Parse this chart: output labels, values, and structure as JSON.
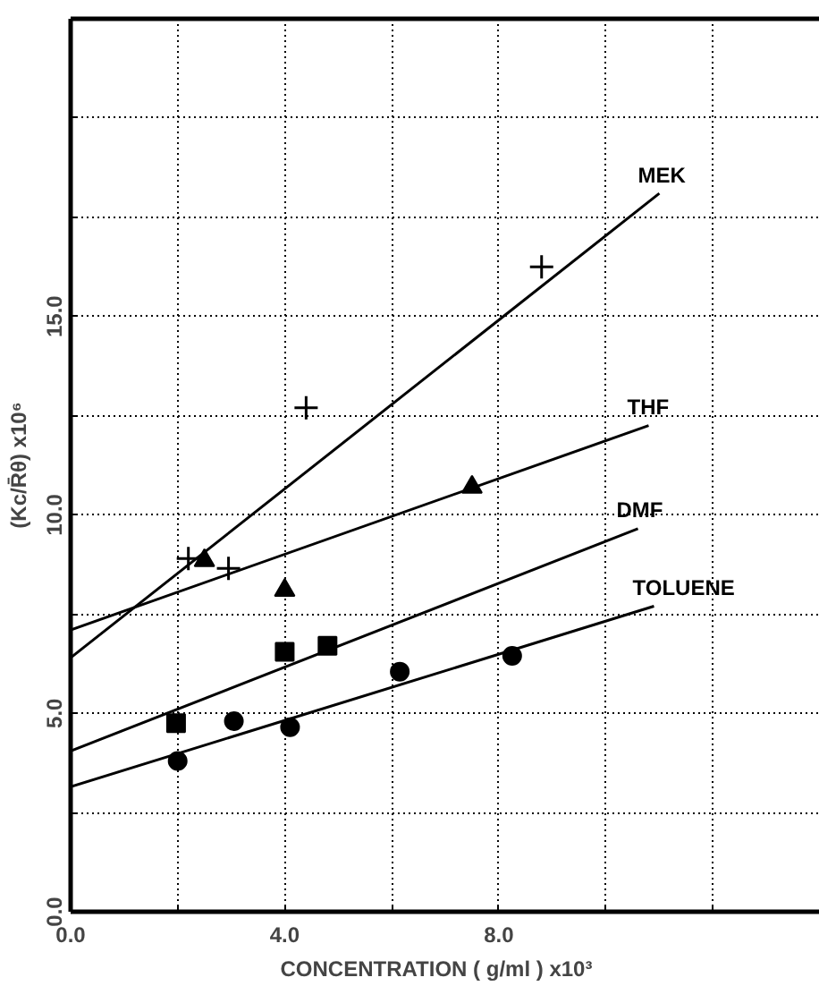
{
  "chart_data": {
    "type": "scatter",
    "xlabel": "CONCENTRATION   ( g/ml )  x10³",
    "ylabel": "(Kc/R̄θ) x10⁶",
    "xlim": [
      0,
      14
    ],
    "ylim": [
      0,
      22.5
    ],
    "xticks": [
      {
        "value": 0,
        "label": "0.0"
      },
      {
        "value": 2,
        "label": null
      },
      {
        "value": 4,
        "label": "4.0"
      },
      {
        "value": 6,
        "label": null
      },
      {
        "value": 8,
        "label": "8.0"
      },
      {
        "value": 10,
        "label": null
      },
      {
        "value": 12,
        "label": null
      }
    ],
    "yticks": [
      {
        "value": 0,
        "label": "0.0"
      },
      {
        "value": 2.5,
        "label": null
      },
      {
        "value": 5,
        "label": "5.0"
      },
      {
        "value": 7.5,
        "label": null
      },
      {
        "value": 10,
        "label": "10.0"
      },
      {
        "value": 12.5,
        "label": null
      },
      {
        "value": 15,
        "label": "15.0"
      },
      {
        "value": 17.5,
        "label": null
      },
      {
        "value": 20,
        "label": null
      }
    ],
    "grid": true,
    "series": [
      {
        "marker": "cross",
        "color": "#000000",
        "x": [
          2.2,
          2.95,
          4.4,
          8.8
        ],
        "values": [
          8.9,
          8.65,
          12.7,
          16.25
        ]
      },
      {
        "type": "line",
        "name": "MEK",
        "color": "#000000",
        "x": [
          0,
          11.0
        ],
        "values": [
          6.4,
          18.1
        ]
      },
      {
        "marker": "triangle",
        "color": "#000000",
        "x": [
          2.5,
          4.0,
          7.5
        ],
        "values": [
          8.85,
          8.1,
          10.7
        ]
      },
      {
        "type": "line",
        "name": "THF",
        "color": "#000000",
        "x": [
          0,
          10.8
        ],
        "values": [
          7.1,
          12.25
        ]
      },
      {
        "marker": "square",
        "color": "#000000",
        "x": [
          1.97,
          4.0,
          4.8
        ],
        "values": [
          4.75,
          6.55,
          6.7
        ]
      },
      {
        "type": "line",
        "name": "DMF",
        "color": "#000000",
        "x": [
          0,
          10.6
        ],
        "values": [
          4.05,
          9.65
        ]
      },
      {
        "marker": "circle",
        "color": "#000000",
        "x": [
          2.0,
          3.05,
          4.1,
          6.15,
          8.25
        ],
        "values": [
          3.8,
          4.8,
          4.65,
          6.05,
          6.45
        ]
      },
      {
        "type": "line",
        "name": "TOLUENE",
        "color": "#000000",
        "x": [
          0,
          10.9
        ],
        "values": [
          3.15,
          7.7
        ]
      }
    ]
  }
}
